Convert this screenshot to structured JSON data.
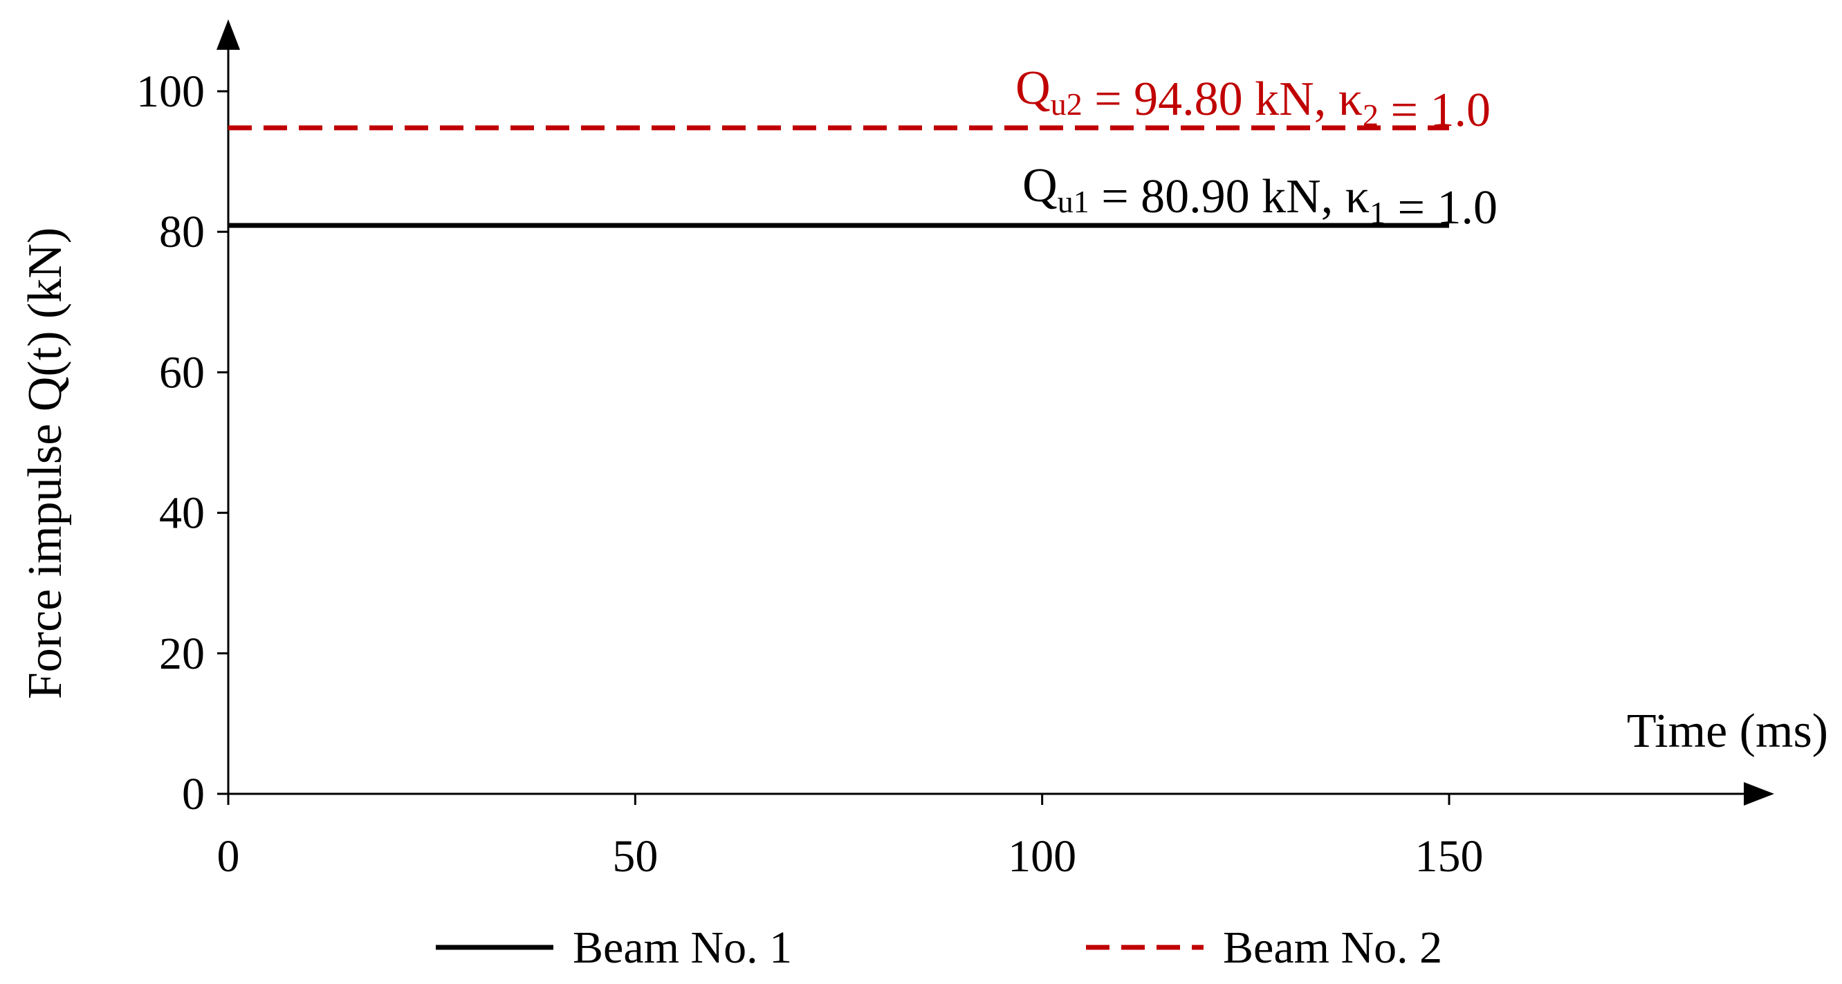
{
  "chart_data": {
    "type": "line",
    "xlabel": "Time (ms)",
    "ylabel": "Force impulse Q(t) (kN)",
    "xlim": [
      0,
      190
    ],
    "ylim": [
      0,
      110
    ],
    "xticks": [
      0,
      50,
      100,
      150
    ],
    "yticks": [
      0,
      20,
      40,
      60,
      80,
      100
    ],
    "grid": false,
    "legend_position": "bottom",
    "series": [
      {
        "name": "Beam No. 1",
        "x": [
          0,
          150
        ],
        "y": [
          80.9,
          80.9
        ],
        "color": "#000000",
        "dash": "solid",
        "annotation": {
          "q": "Q",
          "q_sub": "u1",
          "value": " = 80.90 kN, ",
          "k": "κ",
          "k_sub": "1",
          "k_value": " = 1.0"
        }
      },
      {
        "name": "Beam No. 2",
        "x": [
          0,
          150
        ],
        "y": [
          94.8,
          94.8
        ],
        "color": "#c00000",
        "dash": "dashed",
        "annotation": {
          "q": "Q",
          "q_sub": "u2",
          "value": " = 94.80 kN, ",
          "k": "κ",
          "k_sub": "2",
          "k_value": " = 1.0"
        }
      }
    ]
  }
}
